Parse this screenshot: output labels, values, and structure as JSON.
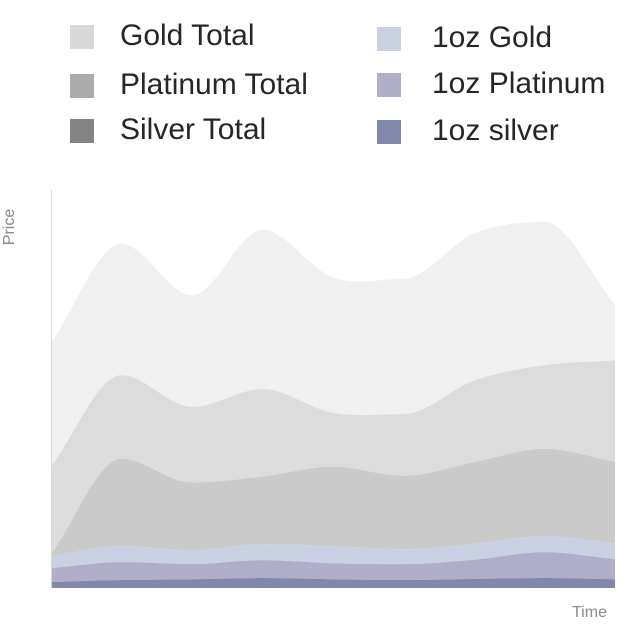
{
  "chart_data": {
    "type": "area",
    "stacked": true,
    "title": "",
    "xlabel": "Time",
    "ylabel": "Price",
    "ylim": [
      0,
      100
    ],
    "grid": false,
    "legend_position": "top",
    "x": [
      0,
      1,
      2,
      3,
      4,
      5,
      6,
      7,
      8
    ],
    "series": [
      {
        "name": "1oz silver",
        "color": "#8288aa",
        "values": [
          1.5,
          2,
          2.2,
          2.5,
          2.2,
          2,
          2.3,
          2.5,
          2.2
        ]
      },
      {
        "name": "1oz Platinum",
        "color": "#b0adc9",
        "values": [
          3.5,
          4.5,
          3.8,
          4.5,
          4,
          4,
          4.8,
          6.5,
          5
        ]
      },
      {
        "name": "1oz Gold",
        "color": "#c9d0e2",
        "values": [
          3,
          4,
          3.5,
          4,
          4.3,
          3.7,
          4,
          4,
          4
        ]
      },
      {
        "name": "Silver Total",
        "color": "#cacaca",
        "values": [
          0.5,
          22,
          17,
          17,
          20,
          18.5,
          20.5,
          22,
          20.5
        ]
      },
      {
        "name": "Platinum Total",
        "color": "#dcdcdc",
        "values": [
          22,
          21,
          19,
          22,
          13.5,
          15.5,
          20.5,
          21,
          25.5
        ]
      },
      {
        "name": "Gold Total",
        "color": "#f0f0f0",
        "values": [
          31,
          33,
          28,
          40,
          34,
          34,
          37,
          36,
          14
        ]
      }
    ],
    "legend": [
      {
        "name": "Gold Total",
        "color": "#d9d9d9"
      },
      {
        "name": "Platinum Total",
        "color": "#ababab"
      },
      {
        "name": "Silver Total",
        "color": "#838383"
      },
      {
        "name": "1oz Gold",
        "color": "#c9d0e2"
      },
      {
        "name": "1oz Platinum",
        "color": "#b0adc9"
      },
      {
        "name": "1oz silver",
        "color": "#8288aa"
      }
    ]
  }
}
